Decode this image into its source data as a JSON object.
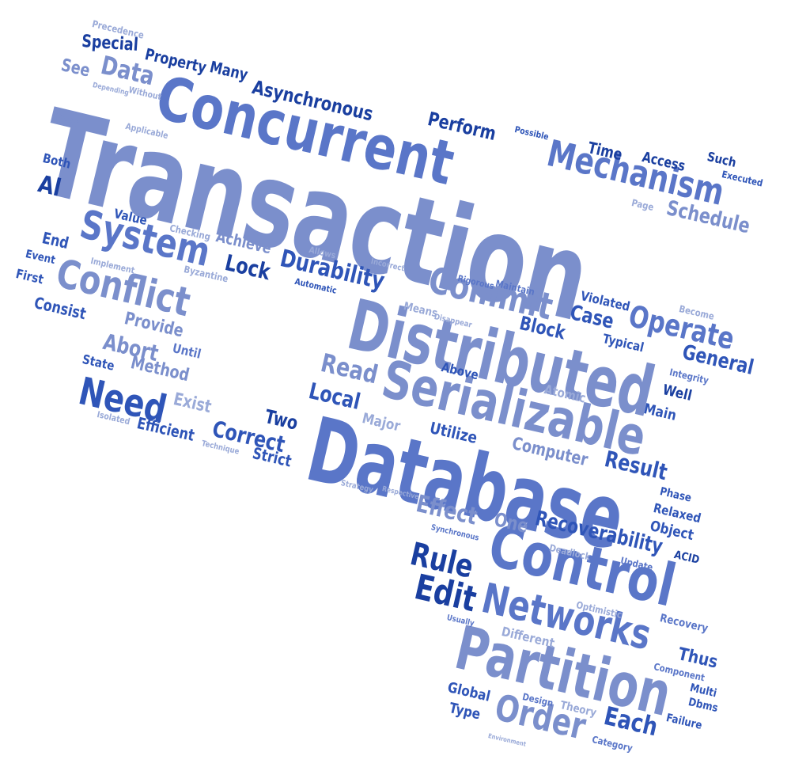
{
  "word_cloud": {
    "colors": {
      "light": "#9aaad8",
      "medium_light": "#7b8fcc",
      "medium": "#5a76c8",
      "dark": "#2f55b8",
      "darkest": "#1a3fa0",
      "background": "#ffffff"
    },
    "words": [
      "Transaction",
      "Concurrent",
      "Distributed",
      "Database",
      "Serializable",
      "Control",
      "Partition",
      "Networks",
      "Mechanism",
      "System",
      "Conflict",
      "Commit",
      "Order",
      "Need",
      "Edit",
      "Rule",
      "Recoverability",
      "Durability",
      "Operate",
      "Asynchronous",
      "Data",
      "Lock",
      "Read",
      "Local",
      "Correct",
      "Two",
      "Strict",
      "Result",
      "Effect",
      "One",
      "Each",
      "Abort",
      "Provide",
      "Method",
      "Exist",
      "Efficient",
      "Block",
      "Case",
      "General",
      "Schedule",
      "Time",
      "Access",
      "Perform",
      "Special",
      "Property",
      "Many",
      "See",
      "Precedence",
      "Depending",
      "Without",
      "Over",
      "Applicable",
      "Both",
      "Al",
      "Value",
      "Checking",
      "Achieve",
      "End",
      "Event",
      "Implement",
      "First",
      "Byzantine",
      "Consist",
      "Until",
      "State",
      "Isolated",
      "Technique",
      "Allows",
      "Automatic",
      "Incorrect",
      "Rigorous",
      "Maintain",
      "Means",
      "Disappear",
      "Violated",
      "Become",
      "Typical",
      "Integrity",
      "Well",
      "Main",
      "Above",
      "Atomic",
      "Major",
      "Utilize",
      "Computer",
      "Phase",
      "Relaxed",
      "Object",
      "ACID",
      "Update",
      "Deadlock",
      "Synchronous",
      "Strategy",
      "Respective",
      "Optimistic",
      "Recovery",
      "Different",
      "Usually",
      "Thus",
      "Component",
      "Multi",
      "Dbms",
      "Failure",
      "Global",
      "Design",
      "Theory",
      "Type",
      "Category",
      "Environment",
      "Possible",
      "Such",
      "Executed",
      "Page",
      "Effect"
    ]
  }
}
